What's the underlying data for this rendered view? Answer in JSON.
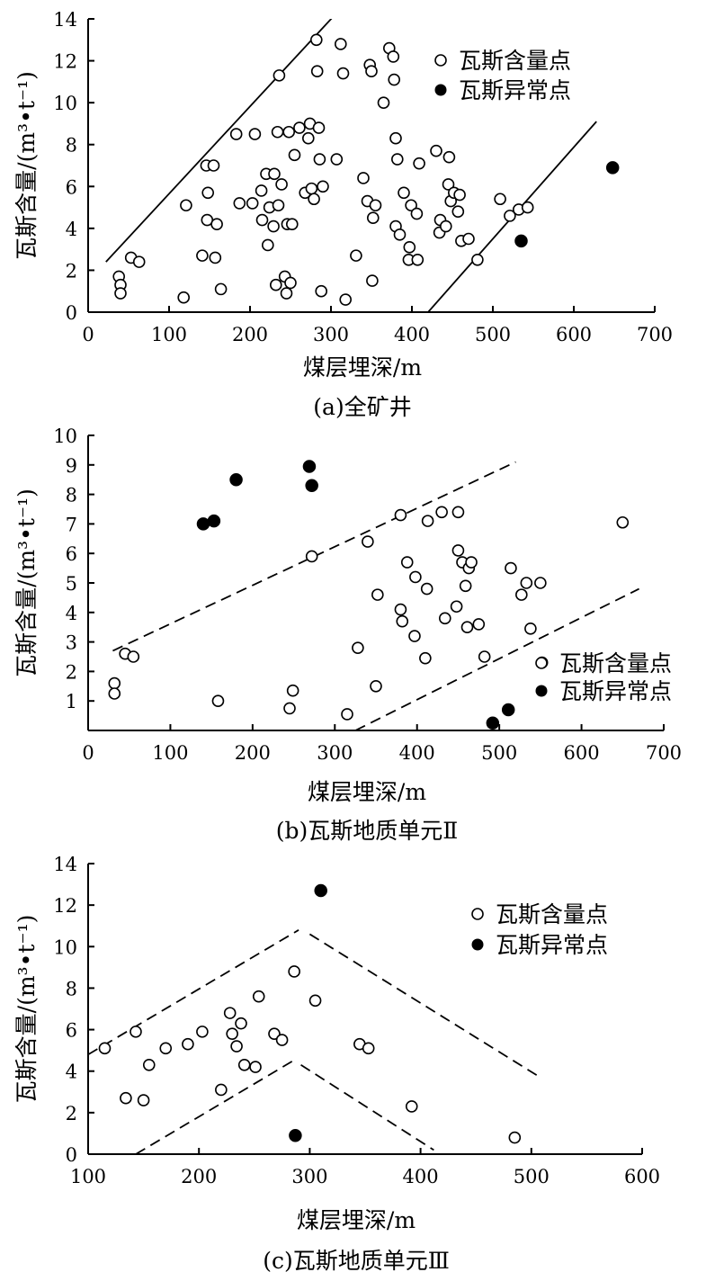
{
  "chart_data": [
    {
      "type": "scatter",
      "title": "",
      "caption": "(a)全矿井",
      "xlabel": "煤层埋深/m",
      "ylabel": "瓦斯含量/(m³•t⁻¹)",
      "xlim": [
        0,
        700
      ],
      "ylim": [
        0,
        14
      ],
      "xticks": [
        "0",
        "100",
        "200",
        "300",
        "400",
        "500",
        "600",
        "700"
      ],
      "yticks": [
        "0",
        "2",
        "4",
        "6",
        "8",
        "10",
        "12",
        "14"
      ],
      "grid": false,
      "legend_position": "top-right",
      "series": [
        {
          "name": "瓦斯含量点",
          "marker": "open-circle",
          "points": [
            [
              38,
              1.7
            ],
            [
              40,
              1.3
            ],
            [
              40,
              0.9
            ],
            [
              53,
              2.6
            ],
            [
              63,
              2.4
            ],
            [
              118,
              0.7
            ],
            [
              121,
              5.1
            ],
            [
              141,
              2.7
            ],
            [
              146,
              7.0
            ],
            [
              147,
              4.4
            ],
            [
              148,
              5.7
            ],
            [
              155,
              7.0
            ],
            [
              157,
              2.6
            ],
            [
              159,
              4.2
            ],
            [
              164,
              1.1
            ],
            [
              183,
              8.5
            ],
            [
              187,
              5.2
            ],
            [
              203,
              5.2
            ],
            [
              206,
              8.5
            ],
            [
              214,
              5.8
            ],
            [
              215,
              4.4
            ],
            [
              220,
              6.6
            ],
            [
              222,
              3.2
            ],
            [
              224,
              5.0
            ],
            [
              229,
              4.1
            ],
            [
              230,
              6.6
            ],
            [
              232,
              1.3
            ],
            [
              234,
              8.6
            ],
            [
              235,
              5.1
            ],
            [
              236,
              11.3
            ],
            [
              239,
              6.1
            ],
            [
              243,
              1.7
            ],
            [
              245,
              0.9
            ],
            [
              246,
              4.2
            ],
            [
              248,
              8.6
            ],
            [
              250,
              1.4
            ],
            [
              252,
              4.2
            ],
            [
              255,
              7.5
            ],
            [
              261,
              8.8
            ],
            [
              268,
              5.7
            ],
            [
              272,
              8.3
            ],
            [
              274,
              9.0
            ],
            [
              276,
              5.9
            ],
            [
              279,
              5.4
            ],
            [
              282,
              13.0
            ],
            [
              283,
              11.5
            ],
            [
              285,
              8.8
            ],
            [
              286,
              7.3
            ],
            [
              288,
              1.0
            ],
            [
              290,
              6.0
            ],
            [
              307,
              7.3
            ],
            [
              312,
              12.8
            ],
            [
              315,
              11.4
            ],
            [
              318,
              0.6
            ],
            [
              331,
              2.7
            ],
            [
              340,
              6.4
            ],
            [
              345,
              5.3
            ],
            [
              348,
              11.8
            ],
            [
              350,
              11.5
            ],
            [
              351,
              1.5
            ],
            [
              352,
              4.5
            ],
            [
              355,
              5.1
            ],
            [
              365,
              10.0
            ],
            [
              372,
              12.6
            ],
            [
              377,
              12.2
            ],
            [
              378,
              11.1
            ],
            [
              380,
              8.3
            ],
            [
              380,
              4.1
            ],
            [
              382,
              7.3
            ],
            [
              385,
              3.7
            ],
            [
              390,
              5.7
            ],
            [
              396,
              2.5
            ],
            [
              397,
              3.1
            ],
            [
              399,
              5.1
            ],
            [
              406,
              4.7
            ],
            [
              407,
              2.5
            ],
            [
              409,
              7.1
            ],
            [
              430,
              7.7
            ],
            [
              434,
              3.8
            ],
            [
              435,
              4.4
            ],
            [
              442,
              4.1
            ],
            [
              445,
              6.1
            ],
            [
              446,
              7.4
            ],
            [
              448,
              5.3
            ],
            [
              452,
              5.7
            ],
            [
              457,
              4.8
            ],
            [
              459,
              5.6
            ],
            [
              461,
              3.4
            ],
            [
              470,
              3.5
            ],
            [
              481,
              2.5
            ],
            [
              509,
              5.4
            ],
            [
              521,
              4.6
            ],
            [
              532,
              4.9
            ],
            [
              543,
              5.0
            ]
          ]
        },
        {
          "name": "瓦斯异常点",
          "marker": "filled-circle",
          "points": [
            [
              535,
              3.4
            ],
            [
              648,
              6.9
            ]
          ]
        }
      ],
      "reference_lines": [
        {
          "style": "solid",
          "from": [
            22,
            2.4
          ],
          "to": [
            305,
            14.2
          ]
        },
        {
          "style": "solid",
          "from": [
            420,
            0
          ],
          "to": [
            628,
            9.1
          ]
        }
      ]
    },
    {
      "type": "scatter",
      "title": "",
      "caption": "(b)瓦斯地质单元Ⅱ",
      "xlabel": "煤层埋深/m",
      "ylabel": "瓦斯含量/(m³•t⁻¹)",
      "xlim": [
        0,
        700
      ],
      "ylim": [
        0,
        10
      ],
      "xticks": [
        "0",
        "100",
        "200",
        "300",
        "400",
        "500",
        "600",
        "700"
      ],
      "yticks": [
        "1",
        "2",
        "3",
        "4",
        "5",
        "6",
        "7",
        "8",
        "9",
        "10"
      ],
      "grid": false,
      "legend_position": "bottom-right",
      "series": [
        {
          "name": "瓦斯含量点",
          "marker": "open-circle",
          "points": [
            [
              32,
              1.6
            ],
            [
              32,
              1.25
            ],
            [
              45,
              2.6
            ],
            [
              55,
              2.5
            ],
            [
              158,
              1.0
            ],
            [
              245,
              0.75
            ],
            [
              249,
              1.35
            ],
            [
              272,
              5.9
            ],
            [
              315,
              0.55
            ],
            [
              328,
              2.8
            ],
            [
              340,
              6.4
            ],
            [
              350,
              1.5
            ],
            [
              352,
              4.6
            ],
            [
              380,
              7.3
            ],
            [
              380,
              4.1
            ],
            [
              382,
              3.7
            ],
            [
              388,
              5.7
            ],
            [
              397,
              3.2
            ],
            [
              398,
              5.2
            ],
            [
              410,
              2.45
            ],
            [
              412,
              4.8
            ],
            [
              413,
              7.1
            ],
            [
              430,
              7.4
            ],
            [
              434,
              3.8
            ],
            [
              448,
              4.2
            ],
            [
              450,
              7.4
            ],
            [
              450,
              6.1
            ],
            [
              455,
              5.7
            ],
            [
              459,
              4.9
            ],
            [
              461,
              3.5
            ],
            [
              463,
              5.5
            ],
            [
              466,
              5.7
            ],
            [
              475,
              3.6
            ],
            [
              482,
              2.5
            ],
            [
              514,
              5.5
            ],
            [
              527,
              4.6
            ],
            [
              533,
              5.0
            ],
            [
              538,
              3.45
            ],
            [
              550,
              5.0
            ],
            [
              552,
              2.3
            ],
            [
              650,
              7.05
            ]
          ]
        },
        {
          "name": "瓦斯异常点",
          "marker": "filled-circle",
          "points": [
            [
              140,
              7.0
            ],
            [
              153,
              7.1
            ],
            [
              180,
              8.5
            ],
            [
              269,
              8.95
            ],
            [
              272,
              8.3
            ],
            [
              492,
              0.25
            ],
            [
              511,
              0.7
            ]
          ]
        }
      ],
      "reference_lines": [
        {
          "style": "dashed",
          "from": [
            30,
            2.7
          ],
          "to": [
            520,
            9.1
          ]
        },
        {
          "style": "dashed",
          "from": [
            325,
            0
          ],
          "to": [
            670,
            4.8
          ]
        }
      ]
    },
    {
      "type": "scatter",
      "title": "",
      "caption": "(c)瓦斯地质单元Ⅲ",
      "xlabel": "煤层埋深/m",
      "ylabel": "瓦斯含量/(m³•t⁻¹)",
      "xlim": [
        100,
        600
      ],
      "ylim": [
        0,
        14
      ],
      "xticks": [
        "100",
        "200",
        "300",
        "400",
        "500",
        "600"
      ],
      "yticks": [
        "0",
        "2",
        "4",
        "6",
        "8",
        "10",
        "12",
        "14"
      ],
      "grid": false,
      "legend_position": "top-right",
      "series": [
        {
          "name": "瓦斯含量点",
          "marker": "open-circle",
          "points": [
            [
              115,
              5.1
            ],
            [
              134,
              2.7
            ],
            [
              143,
              5.9
            ],
            [
              150,
              2.6
            ],
            [
              155,
              4.3
            ],
            [
              170,
              5.1
            ],
            [
              190,
              5.3
            ],
            [
              203,
              5.9
            ],
            [
              220,
              3.1
            ],
            [
              228,
              6.8
            ],
            [
              230,
              5.8
            ],
            [
              234,
              5.2
            ],
            [
              238,
              6.3
            ],
            [
              241,
              4.3
            ],
            [
              251,
              4.2
            ],
            [
              254,
              7.6
            ],
            [
              268,
              5.8
            ],
            [
              275,
              5.5
            ],
            [
              286,
              8.8
            ],
            [
              305,
              7.4
            ],
            [
              345,
              5.3
            ],
            [
              353,
              5.1
            ],
            [
              392,
              2.3
            ],
            [
              485,
              0.8
            ]
          ]
        },
        {
          "name": "瓦斯异常点",
          "marker": "filled-circle",
          "points": [
            [
              310,
              12.7
            ],
            [
              287,
              0.9
            ]
          ]
        }
      ],
      "reference_lines": [
        {
          "style": "dashed",
          "from": [
            100,
            4.8
          ],
          "to": [
            290,
            10.8
          ]
        },
        {
          "style": "dashed",
          "from": [
            300,
            10.6
          ],
          "to": [
            505,
            3.8
          ]
        },
        {
          "style": "dashed",
          "from": [
            143,
            0
          ],
          "to": [
            285,
            4.5
          ]
        },
        {
          "style": "dashed",
          "from": [
            292,
            4.3
          ],
          "to": [
            412,
            0.2
          ]
        }
      ]
    }
  ]
}
